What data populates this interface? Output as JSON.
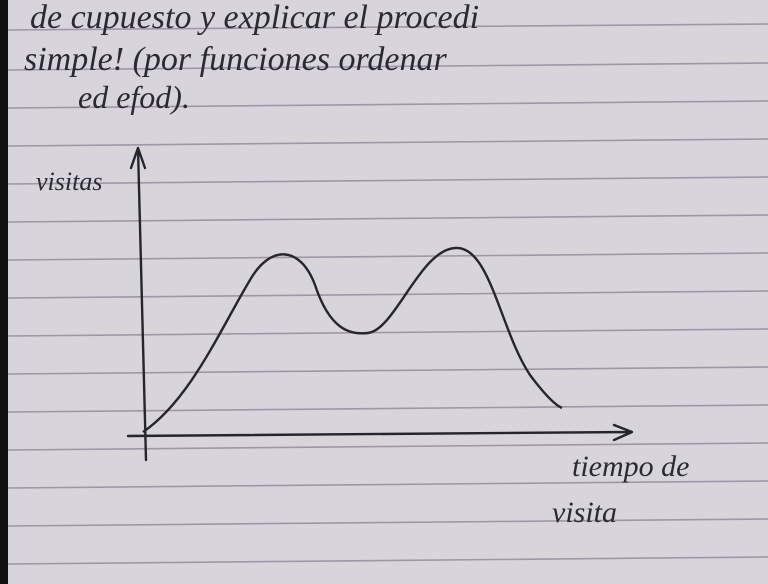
{
  "note": {
    "lines": [
      "de cupuesto y explicar el procedi",
      "simple! (por funciones ordenar",
      "ed efod)."
    ]
  },
  "sketch": {
    "y_axis_label": "visitas",
    "x_axis_label": [
      "tiempo de",
      "visita"
    ]
  }
}
